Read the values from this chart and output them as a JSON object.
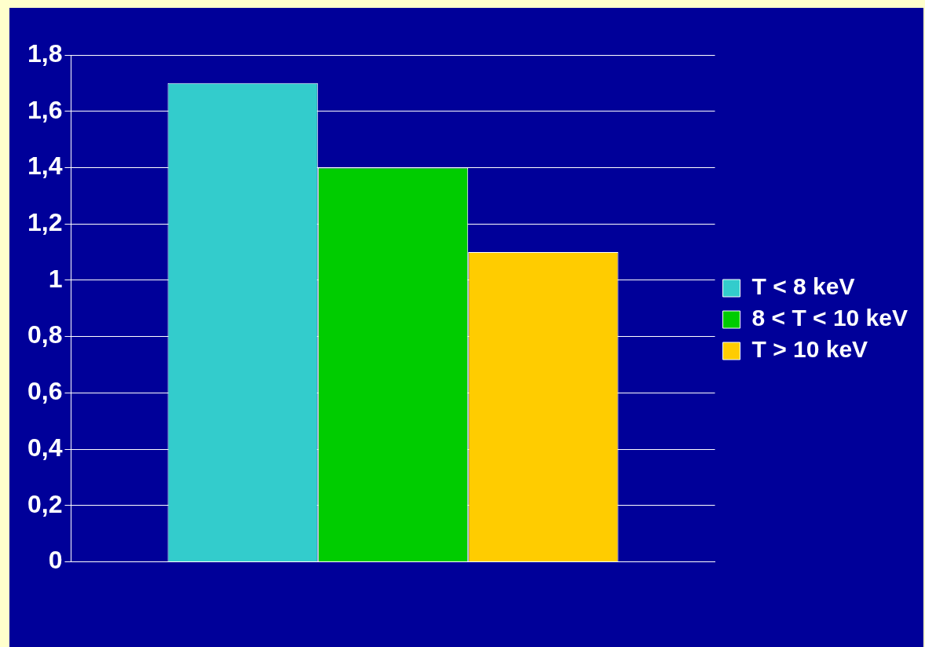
{
  "chart_data": {
    "type": "bar",
    "categories": [
      null
    ],
    "series": [
      {
        "name": "T < 8 keV",
        "color": "#33cccc",
        "values": [
          1.7
        ]
      },
      {
        "name": "8 < T < 10 keV",
        "color": "#00cc00",
        "values": [
          1.4
        ]
      },
      {
        "name": "T > 10 keV",
        "color": "#ffcc00",
        "values": [
          1.1
        ]
      }
    ],
    "ylim": [
      0,
      1.8
    ],
    "yticks": [
      0,
      {
        "value": 0.2,
        "label": "0,2"
      },
      {
        "value": 0.4,
        "label": "0,4"
      },
      {
        "value": 0.6,
        "label": "0,6"
      },
      {
        "value": 0.8,
        "label": "0,8"
      },
      1,
      {
        "value": 1.2,
        "label": "1,2"
      },
      {
        "value": 1.4,
        "label": "1,4"
      },
      {
        "value": 1.6,
        "label": "1,6"
      },
      {
        "value": 1.8,
        "label": "1,8"
      }
    ],
    "grid": "y",
    "legend": "right"
  }
}
